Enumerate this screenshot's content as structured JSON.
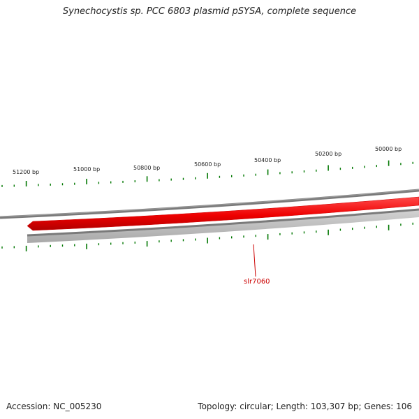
{
  "title": "Synechocystis sp. PCC 6803 plasmid pSYSA, complete sequence",
  "footer": {
    "accession": "Accession: NC_005230",
    "stats": "Topology: circular; Length: 103,307 bp; Genes: 106"
  },
  "ruler_outer": {
    "labels": [
      "51200 bp",
      "51000 bp",
      "50800 bp",
      "50600 bp",
      "50400 bp",
      "50200 bp",
      "50000 bp"
    ]
  },
  "genes": [
    {
      "name": "slr7060",
      "strand": "forward"
    }
  ],
  "colors": {
    "gene_forward": "#ff0000",
    "backbone_outer": "#808080",
    "backbone_inner": "#b8b8b8",
    "tick": "#007700",
    "gene_label": "#cc0000"
  }
}
